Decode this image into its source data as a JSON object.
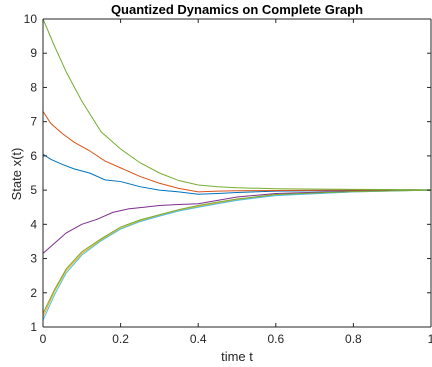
{
  "chart_data": {
    "type": "line",
    "title": "Quantized Dynamics on Complete Graph",
    "xlabel": "time t",
    "ylabel": "State x(t)",
    "xlim": [
      0,
      1
    ],
    "ylim": [
      1,
      10
    ],
    "xticks": [
      0,
      0.2,
      0.4,
      0.6,
      0.8,
      1
    ],
    "xtick_labels": [
      "0",
      "0.2",
      "0.4",
      "0.6",
      "0.8",
      "1"
    ],
    "yticks": [
      1,
      2,
      3,
      4,
      5,
      6,
      7,
      8,
      9,
      10
    ],
    "ytick_labels": [
      "1",
      "2",
      "3",
      "4",
      "5",
      "6",
      "7",
      "8",
      "9",
      "10"
    ],
    "grid": false,
    "colors": [
      "#0072BD",
      "#D95319",
      "#EDB120",
      "#7E2F8E",
      "#77AC30",
      "#4DBEEE"
    ],
    "series": [
      {
        "color": "#0072BD",
        "x": [
          0,
          0.02,
          0.05,
          0.08,
          0.12,
          0.16,
          0.2,
          0.25,
          0.3,
          0.35,
          0.4,
          0.45,
          0.5,
          0.6,
          0.8,
          1.0
        ],
        "y": [
          6.05,
          5.9,
          5.75,
          5.62,
          5.5,
          5.3,
          5.25,
          5.1,
          5.0,
          4.95,
          4.88,
          4.9,
          4.93,
          4.97,
          4.99,
          5.0
        ]
      },
      {
        "color": "#D95319",
        "x": [
          0,
          0.02,
          0.05,
          0.08,
          0.12,
          0.16,
          0.2,
          0.25,
          0.3,
          0.35,
          0.4,
          0.45,
          0.5,
          0.6,
          0.8,
          1.0
        ],
        "y": [
          7.3,
          6.95,
          6.65,
          6.4,
          6.15,
          5.85,
          5.65,
          5.4,
          5.2,
          5.05,
          4.95,
          4.97,
          4.98,
          4.99,
          5.0,
          5.0
        ]
      },
      {
        "color": "#77AC30",
        "x": [
          0,
          0.03,
          0.06,
          0.1,
          0.15,
          0.2,
          0.25,
          0.3,
          0.35,
          0.4,
          0.45,
          0.5,
          0.6,
          0.8,
          1.0
        ],
        "y": [
          10.0,
          9.2,
          8.45,
          7.6,
          6.7,
          6.2,
          5.8,
          5.5,
          5.28,
          5.15,
          5.1,
          5.07,
          5.04,
          5.02,
          5.01
        ]
      },
      {
        "color": "#7E2F8E",
        "x": [
          0,
          0.03,
          0.06,
          0.1,
          0.14,
          0.18,
          0.22,
          0.26,
          0.3,
          0.35,
          0.4,
          0.45,
          0.5,
          0.6,
          0.8,
          1.0
        ],
        "y": [
          3.15,
          3.45,
          3.75,
          4.0,
          4.15,
          4.35,
          4.45,
          4.5,
          4.55,
          4.58,
          4.6,
          4.7,
          4.8,
          4.9,
          4.97,
          5.0
        ]
      },
      {
        "color": "#EDB120",
        "x": [
          0,
          0.03,
          0.06,
          0.1,
          0.15,
          0.2,
          0.25,
          0.3,
          0.35,
          0.4,
          0.45,
          0.5,
          0.6,
          0.8,
          1.0
        ],
        "y": [
          1.3,
          2.05,
          2.65,
          3.15,
          3.55,
          3.88,
          4.1,
          4.25,
          4.4,
          4.52,
          4.62,
          4.72,
          4.85,
          4.95,
          5.0
        ]
      },
      {
        "color": "#4DBEEE",
        "x": [
          0,
          0.03,
          0.06,
          0.1,
          0.15,
          0.2,
          0.25,
          0.3,
          0.35,
          0.4,
          0.45,
          0.5,
          0.6,
          0.8,
          1.0
        ],
        "y": [
          1.2,
          1.95,
          2.58,
          3.1,
          3.52,
          3.86,
          4.08,
          4.24,
          4.39,
          4.5,
          4.6,
          4.7,
          4.84,
          4.95,
          5.0
        ]
      },
      {
        "color": "#77AC30",
        "x": [
          0,
          0.03,
          0.06,
          0.1,
          0.15,
          0.2,
          0.25,
          0.3,
          0.35,
          0.4,
          0.45,
          0.5,
          0.6,
          0.8,
          1.0
        ],
        "y": [
          1.4,
          2.1,
          2.7,
          3.2,
          3.58,
          3.92,
          4.13,
          4.28,
          4.43,
          4.55,
          4.65,
          4.74,
          4.87,
          4.96,
          5.0
        ]
      }
    ]
  }
}
